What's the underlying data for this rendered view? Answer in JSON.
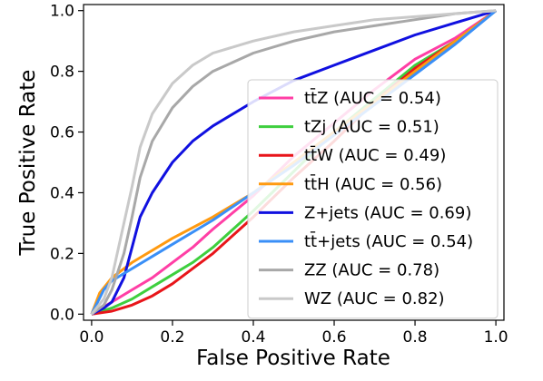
{
  "chart_data": {
    "type": "line",
    "xlabel": "False Positive Rate",
    "ylabel": "True Positive Rate",
    "xlim": [
      -0.02,
      1.02
    ],
    "ylim": [
      -0.02,
      1.02
    ],
    "xticks": [
      "0.0",
      "0.2",
      "0.4",
      "0.6",
      "0.8",
      "1.0"
    ],
    "yticks": [
      "0.0",
      "0.2",
      "0.4",
      "0.6",
      "0.8",
      "1.0"
    ],
    "grid": false,
    "legend_position": "lower-right",
    "series": [
      {
        "name": "tt̄Z (AUC = 0.54)",
        "color": "#ff3ea5",
        "points": [
          [
            0,
            0
          ],
          [
            0.05,
            0.04
          ],
          [
            0.1,
            0.08
          ],
          [
            0.15,
            0.12
          ],
          [
            0.2,
            0.17
          ],
          [
            0.25,
            0.22
          ],
          [
            0.3,
            0.28
          ],
          [
            0.4,
            0.39
          ],
          [
            0.5,
            0.52
          ],
          [
            0.6,
            0.63
          ],
          [
            0.7,
            0.74
          ],
          [
            0.8,
            0.84
          ],
          [
            0.9,
            0.91
          ],
          [
            1,
            1
          ]
        ]
      },
      {
        "name": "tZj (AUC = 0.51)",
        "color": "#3ecf3e",
        "points": [
          [
            0,
            0
          ],
          [
            0.05,
            0.02
          ],
          [
            0.1,
            0.05
          ],
          [
            0.15,
            0.09
          ],
          [
            0.2,
            0.13
          ],
          [
            0.25,
            0.17
          ],
          [
            0.3,
            0.22
          ],
          [
            0.4,
            0.34
          ],
          [
            0.5,
            0.47
          ],
          [
            0.6,
            0.6
          ],
          [
            0.7,
            0.71
          ],
          [
            0.8,
            0.82
          ],
          [
            0.9,
            0.9
          ],
          [
            1,
            1
          ]
        ]
      },
      {
        "name": "tt̄W (AUC = 0.49)",
        "color": "#e8151a",
        "points": [
          [
            0,
            0
          ],
          [
            0.05,
            0.01
          ],
          [
            0.1,
            0.03
          ],
          [
            0.15,
            0.06
          ],
          [
            0.2,
            0.1
          ],
          [
            0.25,
            0.15
          ],
          [
            0.3,
            0.2
          ],
          [
            0.4,
            0.32
          ],
          [
            0.5,
            0.45
          ],
          [
            0.6,
            0.57
          ],
          [
            0.7,
            0.7
          ],
          [
            0.8,
            0.81
          ],
          [
            0.9,
            0.9
          ],
          [
            1,
            1
          ]
        ]
      },
      {
        "name": "tt̄H (AUC = 0.56)",
        "color": "#ff9a10",
        "points": [
          [
            0,
            0
          ],
          [
            0.02,
            0.07
          ],
          [
            0.05,
            0.12
          ],
          [
            0.1,
            0.17
          ],
          [
            0.15,
            0.21
          ],
          [
            0.2,
            0.25
          ],
          [
            0.3,
            0.32
          ],
          [
            0.4,
            0.4
          ],
          [
            0.5,
            0.5
          ],
          [
            0.6,
            0.6
          ],
          [
            0.7,
            0.7
          ],
          [
            0.8,
            0.8
          ],
          [
            0.9,
            0.9
          ],
          [
            1,
            1
          ]
        ]
      },
      {
        "name": "Z+jets (AUC = 0.69)",
        "color": "#1010e0",
        "points": [
          [
            0,
            0
          ],
          [
            0.03,
            0.02
          ],
          [
            0.05,
            0.04
          ],
          [
            0.08,
            0.12
          ],
          [
            0.1,
            0.22
          ],
          [
            0.12,
            0.32
          ],
          [
            0.15,
            0.4
          ],
          [
            0.2,
            0.5
          ],
          [
            0.25,
            0.57
          ],
          [
            0.3,
            0.62
          ],
          [
            0.4,
            0.7
          ],
          [
            0.5,
            0.77
          ],
          [
            0.6,
            0.82
          ],
          [
            0.7,
            0.87
          ],
          [
            0.8,
            0.92
          ],
          [
            0.9,
            0.96
          ],
          [
            1,
            1
          ]
        ]
      },
      {
        "name": "tt̄+jets (AUC = 0.54)",
        "color": "#3a8ff7",
        "points": [
          [
            0,
            0
          ],
          [
            0.03,
            0.08
          ],
          [
            0.05,
            0.11
          ],
          [
            0.1,
            0.15
          ],
          [
            0.15,
            0.19
          ],
          [
            0.2,
            0.23
          ],
          [
            0.3,
            0.31
          ],
          [
            0.4,
            0.4
          ],
          [
            0.5,
            0.49
          ],
          [
            0.6,
            0.59
          ],
          [
            0.7,
            0.69
          ],
          [
            0.8,
            0.79
          ],
          [
            0.9,
            0.89
          ],
          [
            1,
            1
          ]
        ]
      },
      {
        "name": "ZZ (AUC = 0.78)",
        "color": "#a8a8a8",
        "points": [
          [
            0,
            0
          ],
          [
            0.03,
            0.03
          ],
          [
            0.05,
            0.08
          ],
          [
            0.08,
            0.2
          ],
          [
            0.1,
            0.32
          ],
          [
            0.12,
            0.45
          ],
          [
            0.15,
            0.57
          ],
          [
            0.2,
            0.68
          ],
          [
            0.25,
            0.75
          ],
          [
            0.3,
            0.8
          ],
          [
            0.4,
            0.86
          ],
          [
            0.5,
            0.9
          ],
          [
            0.6,
            0.93
          ],
          [
            0.7,
            0.95
          ],
          [
            0.8,
            0.97
          ],
          [
            0.9,
            0.99
          ],
          [
            1,
            1
          ]
        ]
      },
      {
        "name": "WZ (AUC = 0.82)",
        "color": "#c9c9c9",
        "points": [
          [
            0,
            0
          ],
          [
            0.03,
            0.05
          ],
          [
            0.05,
            0.12
          ],
          [
            0.08,
            0.3
          ],
          [
            0.1,
            0.42
          ],
          [
            0.12,
            0.55
          ],
          [
            0.15,
            0.66
          ],
          [
            0.2,
            0.76
          ],
          [
            0.25,
            0.82
          ],
          [
            0.3,
            0.86
          ],
          [
            0.4,
            0.9
          ],
          [
            0.5,
            0.93
          ],
          [
            0.6,
            0.95
          ],
          [
            0.7,
            0.97
          ],
          [
            0.8,
            0.98
          ],
          [
            0.9,
            0.99
          ],
          [
            1,
            1
          ]
        ]
      }
    ]
  }
}
